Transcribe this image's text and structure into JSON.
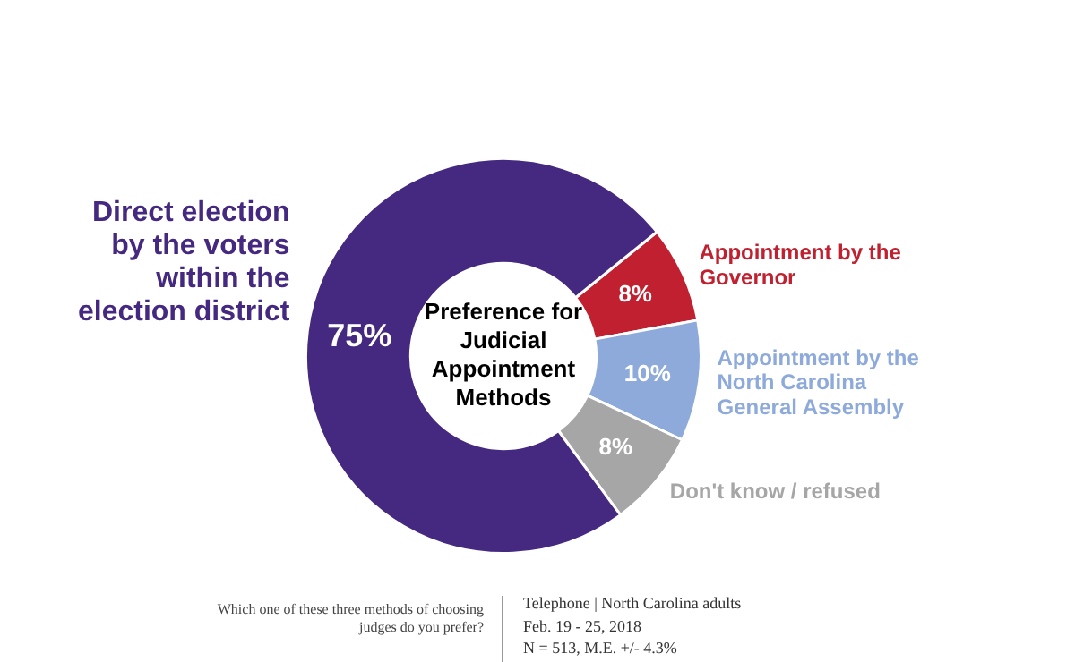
{
  "chart_data": {
    "type": "donut",
    "title": "Preference for Judicial Appointment Methods",
    "categories": [
      "Appointment by the Governor",
      "Appointment by the North Carolina General Assembly",
      "Don't know / refused",
      "Direct election by the voters within the election district"
    ],
    "values": [
      8,
      10,
      8,
      75
    ],
    "colors": [
      "#c0202f",
      "#8eaadb",
      "#a6a6a6",
      "#45287f"
    ],
    "value_labels": [
      "8%",
      "10%",
      "8%",
      "75%"
    ],
    "annotations": [
      "Which one of these three methods of choosing judges do you prefer?",
      "Telephone | North Carolina adults",
      "Feb. 19 - 25, 2018",
      "N = 513, M.E. +/- 4.3%"
    ]
  }
}
